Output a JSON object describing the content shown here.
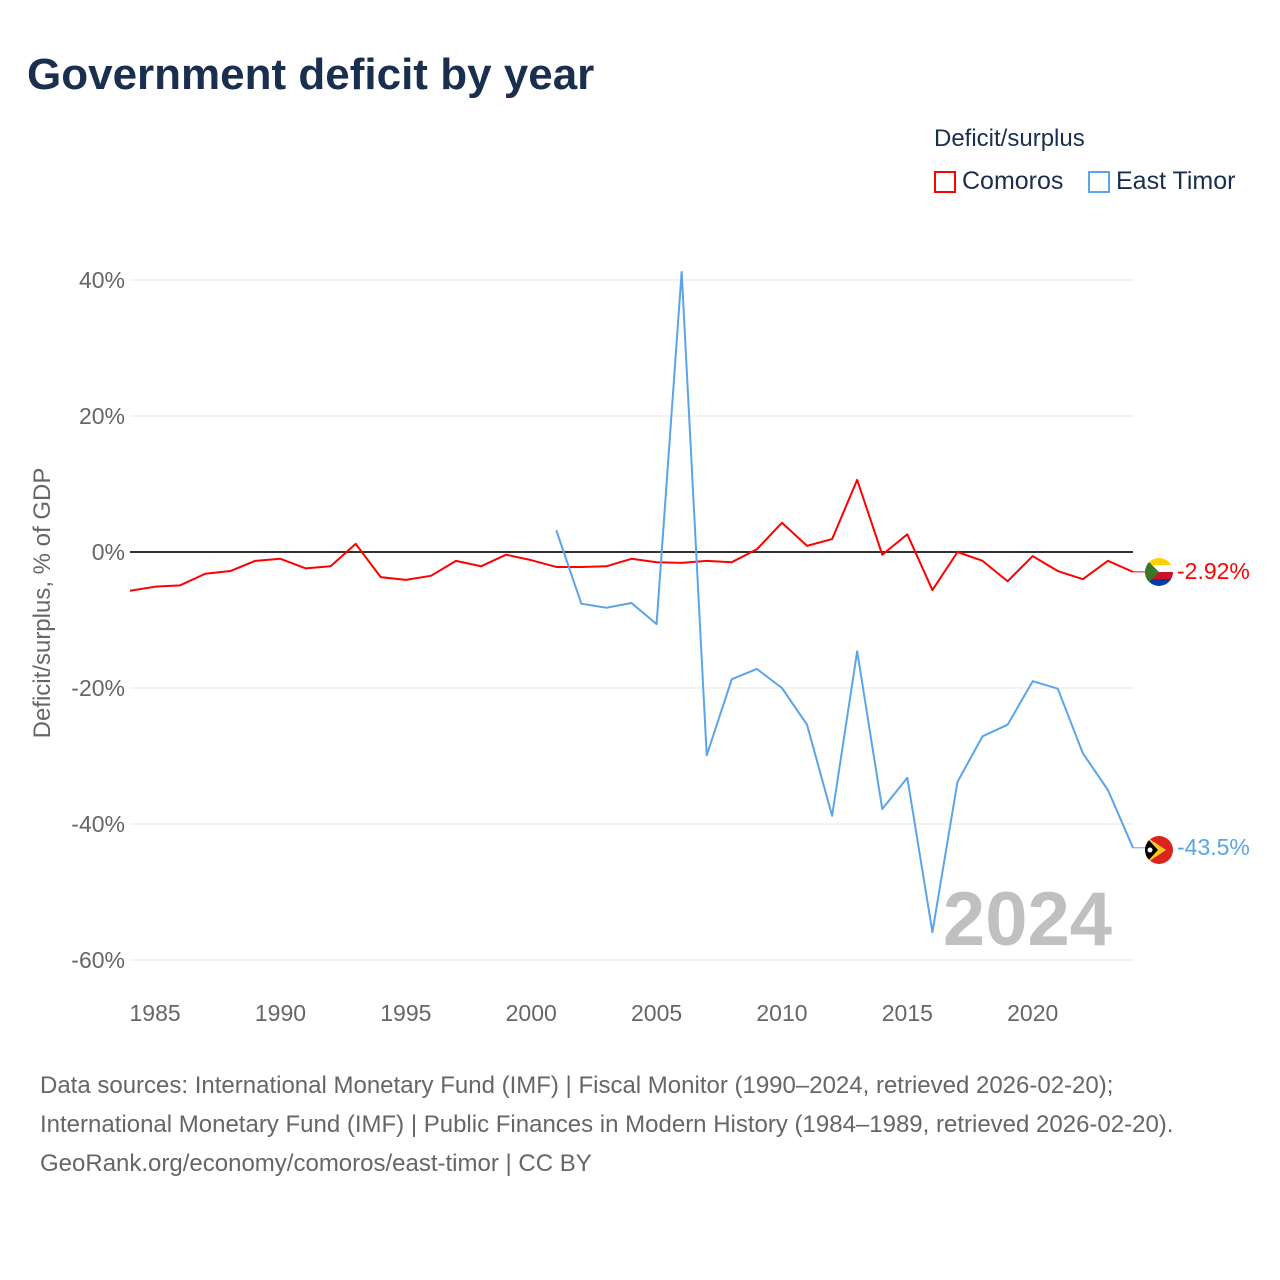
{
  "title": "Government deficit by year",
  "legend": {
    "title": "Deficit/surplus",
    "items": [
      {
        "label": "Comoros",
        "color": "#ff0000"
      },
      {
        "label": "East Timor",
        "color": "#5aa5ea"
      }
    ]
  },
  "watermark_year": "2024",
  "footer": {
    "sources": "Data sources: International Monetary Fund (IMF) | Fiscal Monitor (1990–2024, retrieved 2026-02-20); International Monetary Fund (IMF) | Public Finances in Modern History (1984–1989, retrieved 2026-02-20).",
    "credit": "GeoRank.org/economy/comoros/east-timor | CC BY"
  },
  "chart_data": {
    "type": "line",
    "title": "Government deficit by year",
    "xlabel": "",
    "ylabel": "Deficit/surplus, % of GDP",
    "xlim": [
      1984,
      2024
    ],
    "ylim": [
      -60,
      40
    ],
    "x_ticks": [
      1985,
      1990,
      1995,
      2000,
      2005,
      2010,
      2015,
      2020
    ],
    "y_ticks": [
      40,
      20,
      0,
      -20,
      -40,
      -60
    ],
    "y_tick_labels": [
      "40%",
      "20%",
      "0%",
      "-20%",
      "-40%",
      "-60%"
    ],
    "grid": true,
    "legend_position": "top-right",
    "series": [
      {
        "name": "Comoros",
        "color": "#ff0000",
        "end_label": "-2.92%",
        "x": [
          1984,
          1985,
          1986,
          1987,
          1988,
          1989,
          1990,
          1991,
          1992,
          1993,
          1994,
          1995,
          1996,
          1997,
          1998,
          1999,
          2000,
          2001,
          2002,
          2003,
          2004,
          2005,
          2006,
          2007,
          2008,
          2009,
          2010,
          2011,
          2012,
          2013,
          2014,
          2015,
          2016,
          2017,
          2018,
          2019,
          2020,
          2021,
          2022,
          2023,
          2024
        ],
        "y": [
          -5.7,
          -5.1,
          -4.9,
          -3.2,
          -2.8,
          -1.3,
          -1.0,
          -2.4,
          -2.1,
          1.2,
          -3.7,
          -4.1,
          -3.5,
          -1.3,
          -2.1,
          -0.4,
          -1.2,
          -2.2,
          -2.2,
          -2.1,
          -1.0,
          -1.5,
          -1.6,
          -1.3,
          -1.5,
          0.4,
          4.3,
          0.9,
          1.9,
          10.6,
          -0.4,
          2.6,
          -5.6,
          0.0,
          -1.3,
          -4.3,
          -0.6,
          -2.8,
          -4.0,
          -1.3,
          -2.92
        ]
      },
      {
        "name": "East Timor",
        "color": "#5aa5ea",
        "end_label": "-43.5%",
        "x": [
          2001,
          2002,
          2003,
          2004,
          2005,
          2006,
          2007,
          2008,
          2009,
          2010,
          2011,
          2012,
          2013,
          2014,
          2015,
          2016,
          2017,
          2018,
          2019,
          2020,
          2021,
          2022,
          2023,
          2024
        ],
        "y": [
          3.2,
          -7.6,
          -8.2,
          -7.5,
          -10.6,
          41.2,
          -29.9,
          -18.7,
          -17.2,
          -20.0,
          -25.4,
          -38.8,
          -14.6,
          -37.8,
          -33.2,
          -55.9,
          -33.8,
          -27.1,
          -25.4,
          -19.0,
          -20.1,
          -29.6,
          -35.0,
          -43.5
        ]
      }
    ]
  }
}
